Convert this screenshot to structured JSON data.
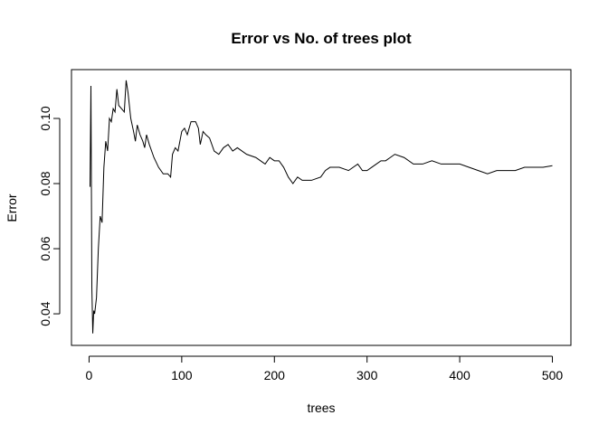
{
  "chart_data": {
    "type": "line",
    "title": "Error vs No. of trees plot",
    "x_label": "trees",
    "y_label": "Error",
    "color": "#000000",
    "x": [
      1,
      2,
      3,
      4,
      5,
      6,
      8,
      10,
      12,
      14,
      16,
      18,
      20,
      22,
      24,
      26,
      28,
      30,
      32,
      35,
      38,
      40,
      42,
      45,
      48,
      50,
      52,
      55,
      58,
      60,
      62,
      65,
      70,
      75,
      80,
      85,
      88,
      90,
      93,
      96,
      100,
      103,
      106,
      110,
      115,
      118,
      120,
      123,
      126,
      130,
      135,
      140,
      145,
      150,
      155,
      160,
      170,
      180,
      185,
      190,
      195,
      200,
      205,
      210,
      215,
      220,
      225,
      230,
      240,
      250,
      255,
      260,
      270,
      280,
      290,
      295,
      300,
      305,
      310,
      315,
      320,
      325,
      330,
      340,
      350,
      360,
      370,
      380,
      390,
      400,
      410,
      420,
      430,
      440,
      450,
      460,
      470,
      480,
      490,
      500
    ],
    "values": [
      0.079,
      0.11,
      0.048,
      0.034,
      0.041,
      0.04,
      0.045,
      0.06,
      0.07,
      0.068,
      0.085,
      0.093,
      0.09,
      0.1,
      0.099,
      0.103,
      0.102,
      0.109,
      0.104,
      0.103,
      0.102,
      0.1117,
      0.108,
      0.1,
      0.096,
      0.093,
      0.098,
      0.095,
      0.093,
      0.091,
      0.095,
      0.092,
      0.088,
      0.085,
      0.083,
      0.083,
      0.082,
      0.089,
      0.091,
      0.09,
      0.096,
      0.097,
      0.095,
      0.099,
      0.099,
      0.097,
      0.092,
      0.096,
      0.095,
      0.094,
      0.09,
      0.089,
      0.091,
      0.092,
      0.09,
      0.091,
      0.089,
      0.088,
      0.087,
      0.086,
      0.088,
      0.087,
      0.087,
      0.085,
      0.082,
      0.08,
      0.082,
      0.081,
      0.081,
      0.082,
      0.084,
      0.085,
      0.085,
      0.084,
      0.086,
      0.084,
      0.084,
      0.085,
      0.086,
      0.087,
      0.087,
      0.088,
      0.089,
      0.088,
      0.086,
      0.086,
      0.087,
      0.086,
      0.086,
      0.086,
      0.085,
      0.084,
      0.083,
      0.084,
      0.084,
      0.084,
      0.085,
      0.085,
      0.085,
      0.0855
    ],
    "xlim": [
      -19,
      520
    ],
    "ylim": [
      0.0303,
      0.115
    ],
    "xticks": [
      0,
      100,
      200,
      300,
      400,
      500
    ],
    "yticks": [
      0.04,
      0.06,
      0.08,
      {
        "value": 0.1,
        "label": "0.10"
      }
    ]
  }
}
